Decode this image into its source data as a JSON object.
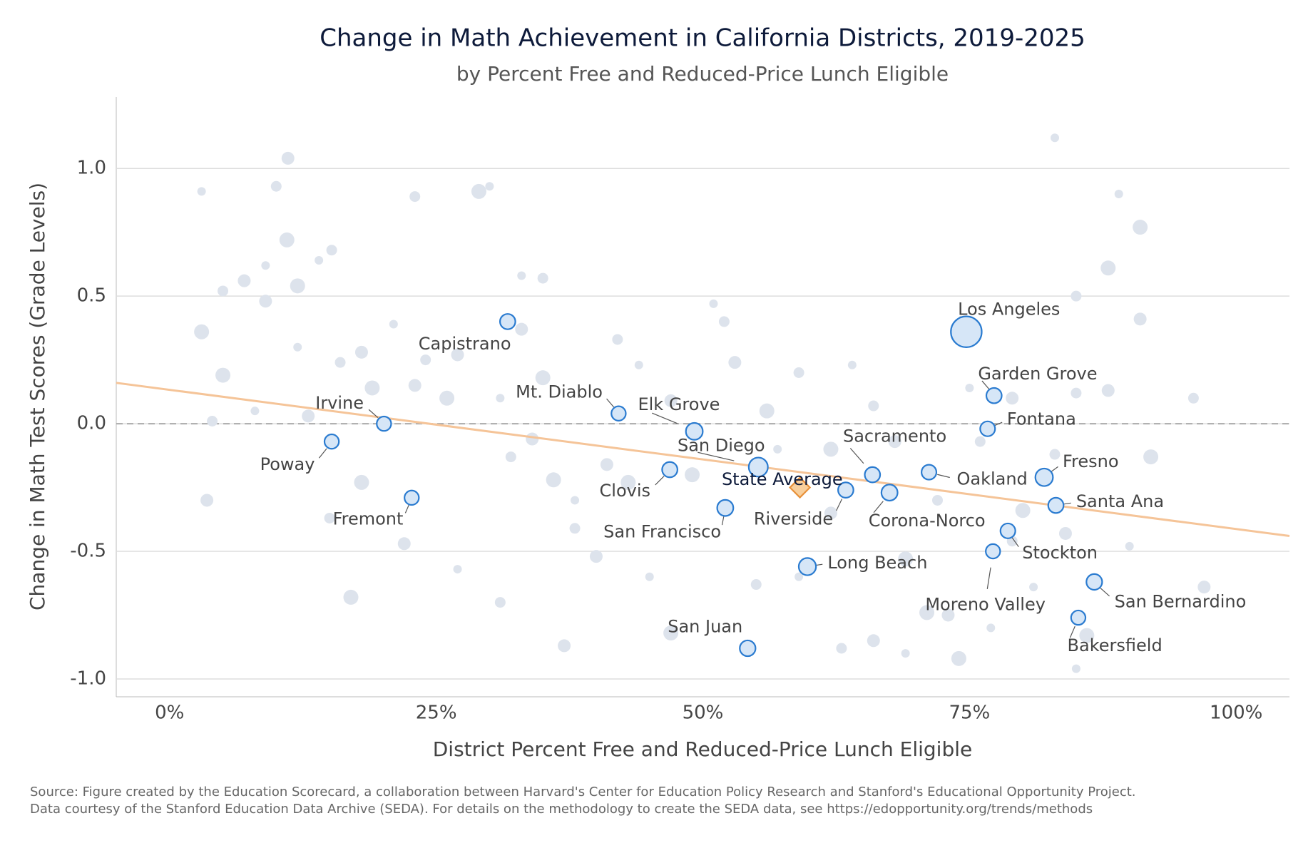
{
  "chart_data": {
    "type": "scatter",
    "title": "Change in Math Achievement in California Districts, 2019-2025",
    "subtitle": "by Percent Free and Reduced-Price Lunch Eligible",
    "x_label": "District Percent Free and Reduced-Price Lunch Eligible",
    "y_label": "Change in Math Test Scores (Grade Levels)",
    "source": [
      "Source: Figure created by the Education Scorecard, a collaboration between Harvard's Center for Education Policy Research and Stanford's Educational Opportunity Project.",
      "Data courtesy of the Stanford Education Data Archive (SEDA). For details on the methodology to create the SEDA data, see https://edopportunity.org/trends/methods"
    ],
    "xlim": [
      -5,
      105
    ],
    "xticks": [
      {
        "value": 0,
        "label": "0%"
      },
      {
        "value": 25,
        "label": "25%"
      },
      {
        "value": 50,
        "label": "50%"
      },
      {
        "value": 75,
        "label": "75%"
      },
      {
        "value": 100,
        "label": "100%"
      }
    ],
    "ylim": [
      -1.07,
      1.28
    ],
    "yticks": [
      {
        "value": 1,
        "label": "1.0"
      },
      0.5,
      {
        "value": 0,
        "label": "0.0"
      },
      -0.5,
      {
        "value": -1,
        "label": "-1.0"
      }
    ],
    "grid": true,
    "reference_y": 0,
    "series": [
      {
        "color": "#dde3ec",
        "x": [
          3,
          10,
          11.1,
          11,
          9,
          5,
          7,
          12,
          14,
          15.2,
          9,
          3,
          12,
          16,
          18,
          5,
          8,
          4,
          13,
          19,
          21,
          24,
          27,
          29,
          30,
          23,
          23,
          26,
          33,
          35,
          33,
          35,
          31,
          32,
          34,
          36,
          38,
          38,
          41,
          43,
          44,
          42,
          47,
          49,
          51,
          52,
          53,
          56,
          57,
          59,
          62,
          62,
          64,
          66,
          68,
          69,
          69,
          72,
          73,
          74,
          75,
          76,
          79,
          80,
          81,
          83,
          84,
          86,
          85,
          85,
          88,
          88,
          89,
          85,
          91,
          91,
          83,
          96,
          97,
          92,
          90,
          15,
          3.5,
          17,
          27,
          31,
          37,
          47,
          59,
          63,
          66,
          71,
          77,
          79,
          22,
          18,
          45,
          55,
          40
        ],
        "y": [
          0.91,
          0.93,
          1.04,
          0.72,
          0.62,
          0.52,
          0.56,
          0.54,
          0.64,
          0.68,
          0.48,
          0.36,
          0.3,
          0.24,
          0.28,
          0.19,
          0.05,
          0.01,
          0.03,
          0.14,
          0.39,
          0.25,
          0.27,
          0.91,
          0.93,
          0.89,
          0.15,
          0.1,
          0.58,
          0.57,
          0.37,
          0.18,
          0.1,
          -0.13,
          -0.06,
          -0.22,
          -0.3,
          -0.41,
          -0.16,
          -0.23,
          0.23,
          0.33,
          0.09,
          -0.2,
          0.47,
          0.4,
          0.24,
          0.05,
          -0.1,
          0.2,
          -0.35,
          -0.1,
          0.23,
          0.07,
          -0.07,
          -0.53,
          -0.9,
          -0.3,
          -0.75,
          -0.92,
          0.14,
          -0.07,
          0.1,
          -0.34,
          -0.64,
          -0.12,
          -0.43,
          -0.83,
          -0.96,
          0.12,
          0.13,
          0.61,
          0.9,
          0.5,
          0.41,
          0.77,
          1.12,
          0.1,
          -0.64,
          -0.13,
          -0.48,
          -0.37,
          -0.3,
          -0.68,
          -0.57,
          -0.7,
          -0.87,
          -0.82,
          -0.6,
          -0.88,
          -0.85,
          -0.74,
          -0.8,
          -0.46,
          -0.47,
          -0.23,
          -0.6,
          -0.63,
          -0.52
        ]
      },
      {
        "color": "#d6e6f7",
        "edge_color": "#2a7bd0",
        "labels": [
          "Capistrano",
          "Irvine",
          "Poway",
          "Fremont",
          "Mt. Diablo",
          "Elk Grove",
          "Clovis",
          "San Diego",
          "San Francisco",
          "Riverside",
          "Sacramento",
          "Corona-Norco",
          "Oakland",
          "Long Beach",
          "San Juan",
          "Los Angeles",
          "Garden Grove",
          "Fontana",
          "Fresno",
          "Santa Ana",
          "Stockton",
          "Moreno Valley",
          "San Bernardino",
          "Bakersfield"
        ],
        "x": [
          31.7,
          20.1,
          15.2,
          22.7,
          42.1,
          49.2,
          46.9,
          55.2,
          52.1,
          63.4,
          65.9,
          67.5,
          71.2,
          59.8,
          54.2,
          74.7,
          77.3,
          76.7,
          82,
          83.1,
          78.6,
          77.2,
          86.7,
          85.2
        ],
        "y": [
          0.4,
          0,
          -0.07,
          -0.29,
          0.04,
          -0.03,
          -0.18,
          -0.17,
          -0.33,
          -0.26,
          -0.2,
          -0.27,
          -0.19,
          -0.56,
          -0.88,
          0.36,
          0.11,
          -0.02,
          -0.21,
          -0.32,
          -0.42,
          -0.5,
          -0.62,
          -0.76
        ],
        "sizes": [
          40,
          30,
          30,
          30,
          30,
          60,
          40,
          95,
          50,
          40,
          40,
          50,
          35,
          65,
          45,
          420,
          40,
          35,
          70,
          40,
          35,
          30,
          45,
          30
        ]
      },
      {
        "name": "State Average",
        "color": "#f8cf9c",
        "edge_color": "#e8913a",
        "marker": "diamond",
        "x": [
          59.1
        ],
        "y": [
          -0.25
        ]
      }
    ],
    "trend": {
      "color": "#f5c498",
      "x": [
        -5,
        105
      ],
      "y": [
        0.16,
        -0.44
      ]
    }
  }
}
